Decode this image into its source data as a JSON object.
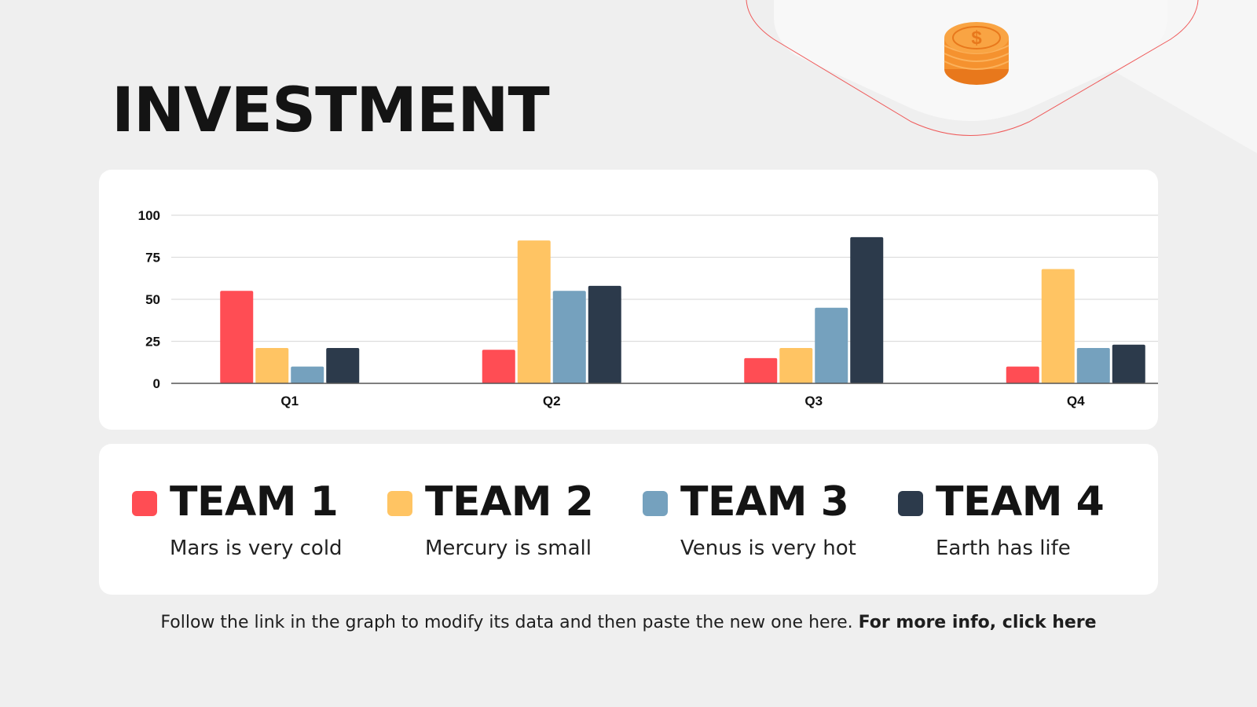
{
  "page": {
    "title": "INVESTMENT",
    "footer_text": "Follow the link in the graph to modify its data and then paste the new one here.",
    "footer_link": "For more info, click here",
    "accent_colors": {
      "orange": "#F5922F",
      "red_outline": "#EF5A5A"
    }
  },
  "legend": [
    {
      "name": "TEAM 1",
      "desc": "Mars is very cold",
      "color": "#FF4D54"
    },
    {
      "name": "TEAM 2",
      "desc": "Mercury is small",
      "color": "#FFC463"
    },
    {
      "name": "TEAM 3",
      "desc": "Venus is very hot",
      "color": "#75A1BE"
    },
    {
      "name": "TEAM 4",
      "desc": "Earth has life",
      "color": "#2C3A4B"
    }
  ],
  "chart_data": {
    "type": "bar",
    "categories": [
      "Q1",
      "Q2",
      "Q3",
      "Q4"
    ],
    "series": [
      {
        "name": "TEAM 1",
        "values": [
          55,
          20,
          15,
          10
        ],
        "color": "#FF4D54"
      },
      {
        "name": "TEAM 2",
        "values": [
          21,
          85,
          21,
          68
        ],
        "color": "#FFC463"
      },
      {
        "name": "TEAM 3",
        "values": [
          10,
          55,
          45,
          21
        ],
        "color": "#75A1BE"
      },
      {
        "name": "TEAM 4",
        "values": [
          21,
          58,
          87,
          23
        ],
        "color": "#2C3A4B"
      }
    ],
    "yticks": [
      0,
      25,
      50,
      75,
      100
    ],
    "ylim": [
      0,
      100
    ],
    "grid": true,
    "title": "",
    "xlabel": "",
    "ylabel": ""
  }
}
